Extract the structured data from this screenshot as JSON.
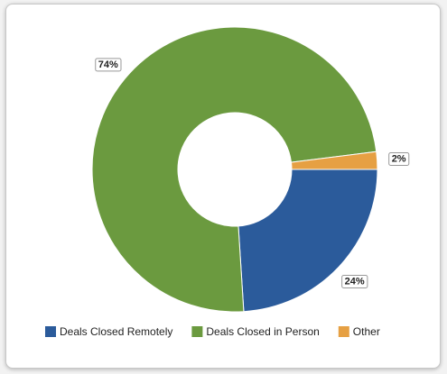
{
  "chart_data": {
    "type": "donut",
    "categories": [
      "Deals Closed Remotely",
      "Deals Closed in Person",
      "Other"
    ],
    "values": [
      24,
      74,
      2
    ],
    "value_labels": [
      "24%",
      "74%",
      "2%"
    ],
    "colors": [
      "#2b5b9b",
      "#6b9a3f",
      "#e6a043"
    ]
  }
}
